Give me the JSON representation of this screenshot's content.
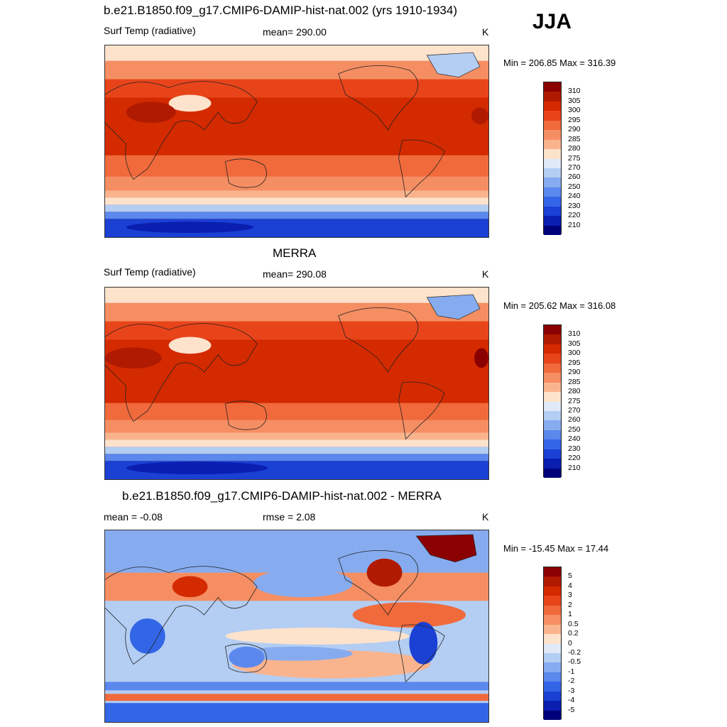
{
  "season": "JJA",
  "panels": [
    {
      "title": "b.e21.B1850.f09_g17.CMIP6-DAMIP-hist-nat.002 (yrs 1910-1934)",
      "variable": "Surf Temp (radiative)",
      "stat": "mean= 290.00",
      "stat2": "",
      "units": "K",
      "range": "Min = 206.85 Max = 316.39"
    },
    {
      "title": "MERRA",
      "variable": "Surf Temp (radiative)",
      "stat": "mean= 290.08",
      "stat2": "",
      "units": "K",
      "range": "Min = 205.62 Max = 316.08"
    },
    {
      "title": "b.e21.B1850.f09_g17.CMIP6-DAMIP-hist-nat.002 - MERRA",
      "variable": "",
      "stat": "mean =  -0.08",
      "stat2": "rmse =   2.08",
      "units": "K",
      "range": "Min = -15.45 Max =  17.44"
    }
  ],
  "colorbars": {
    "absolute": {
      "labels": [
        "310",
        "305",
        "300",
        "295",
        "290",
        "285",
        "280",
        "275",
        "270",
        "260",
        "250",
        "240",
        "230",
        "220",
        "210"
      ],
      "colors": [
        "#8b0000",
        "#b01a00",
        "#d42a00",
        "#e8441a",
        "#f06a3c",
        "#f58e62",
        "#f9b48e",
        "#fde2cc",
        "#dfe9f8",
        "#b3cdf3",
        "#86acef",
        "#5a88ec",
        "#3366e6",
        "#1a40d4",
        "#0a1fb0",
        "#00007a"
      ]
    },
    "difference": {
      "labels": [
        "5",
        "4",
        "3",
        "2",
        "1",
        "0.5",
        "0.2",
        "0",
        "-0.2",
        "-0.5",
        "-1",
        "-2",
        "-3",
        "-4",
        "-5"
      ],
      "colors": [
        "#8b0000",
        "#b01a00",
        "#d42a00",
        "#e8441a",
        "#f06a3c",
        "#f58e62",
        "#f9b48e",
        "#fde2cc",
        "#dfe9f8",
        "#b3cdf3",
        "#86acef",
        "#5a88ec",
        "#3366e6",
        "#1a40d4",
        "#0a1fb0",
        "#00007a"
      ]
    }
  }
}
